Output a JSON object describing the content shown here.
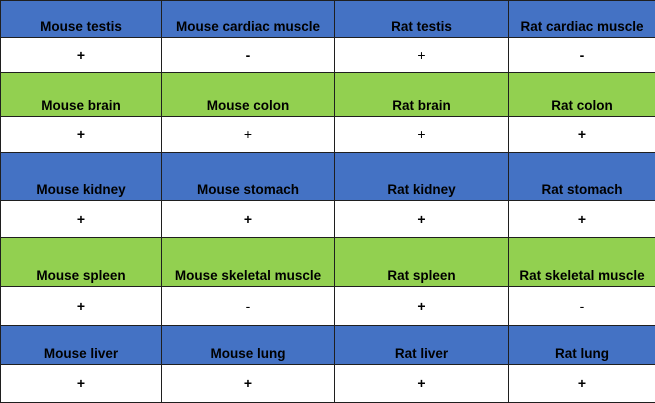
{
  "colors": {
    "blue": "#4472c4",
    "green": "#92d050",
    "white": "#ffffff"
  },
  "rows": [
    {
      "kind": "header",
      "color": "blue",
      "cells": [
        "Mouse testis",
        "Mouse cardiac muscle",
        "Rat testis",
        "Rat cardiac muscle"
      ]
    },
    {
      "kind": "values",
      "cells": [
        "+",
        "-",
        "+",
        "-"
      ],
      "weights": [
        "bold",
        "bold",
        "light",
        "bold"
      ]
    },
    {
      "kind": "header",
      "color": "green",
      "cells": [
        "Mouse brain",
        "Mouse colon",
        "Rat brain",
        "Rat colon"
      ]
    },
    {
      "kind": "values",
      "cells": [
        "+",
        "+",
        "+",
        "+"
      ],
      "weights": [
        "bold",
        "light",
        "light",
        "bold"
      ]
    },
    {
      "kind": "header",
      "color": "blue",
      "cells": [
        "Mouse kidney",
        "Mouse stomach",
        "Rat kidney",
        "Rat stomach"
      ]
    },
    {
      "kind": "values",
      "cells": [
        "+",
        "+",
        "+",
        "+"
      ],
      "weights": [
        "bold",
        "bold",
        "bold",
        "bold"
      ]
    },
    {
      "kind": "header",
      "color": "green",
      "cells": [
        "Mouse spleen",
        "Mouse skeletal muscle",
        "Rat spleen",
        "Rat skeletal muscle"
      ]
    },
    {
      "kind": "values",
      "cells": [
        "+",
        "-",
        "+",
        "-"
      ],
      "weights": [
        "bold",
        "light",
        "bold",
        "light"
      ]
    },
    {
      "kind": "header",
      "color": "blue",
      "cells": [
        "Mouse liver",
        "Mouse lung",
        "Rat liver",
        "Rat lung"
      ]
    },
    {
      "kind": "values",
      "cells": [
        "+",
        "+",
        "+",
        "+"
      ],
      "weights": [
        "bold",
        "bold",
        "bold",
        "bold"
      ]
    }
  ]
}
